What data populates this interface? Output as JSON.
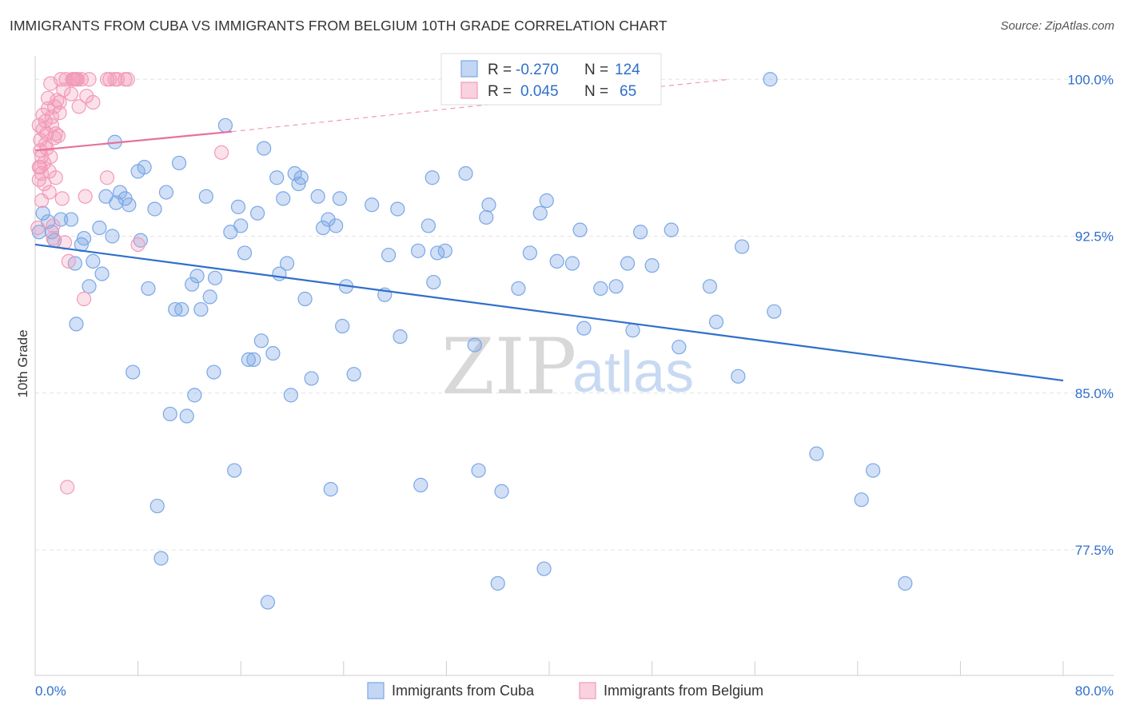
{
  "header": {
    "title": "IMMIGRANTS FROM CUBA VS IMMIGRANTS FROM BELGIUM 10TH GRADE CORRELATION CHART",
    "source": "Source: ZipAtlas.com"
  },
  "watermark": {
    "zip": "ZIP",
    "atlas": "atlas"
  },
  "chart_data": {
    "type": "scatter",
    "title": "IMMIGRANTS FROM CUBA VS IMMIGRANTS FROM BELGIUM 10TH GRADE CORRELATION CHART",
    "xlabel": "",
    "ylabel": "10th Grade",
    "xlim": [
      0,
      80
    ],
    "ylim": [
      71.5,
      101.5
    ],
    "x_tick_labels": [
      "0.0%",
      "80.0%"
    ],
    "y_ticks": [
      77.5,
      85.0,
      92.5,
      100.0
    ],
    "y_tick_labels": [
      "77.5%",
      "85.0%",
      "92.5%",
      "100.0%"
    ],
    "legend": [
      {
        "r_label": "R =",
        "r_value": "-0.270",
        "n_label": "N =",
        "n_value": "124"
      },
      {
        "r_label": "R =",
        "r_value": "0.045",
        "n_label": "N =",
        "n_value": "65"
      }
    ],
    "series": [
      {
        "name": "Immigrants from Cuba",
        "color": "#7aa7e6",
        "fill": "rgba(122,167,230,0.35)",
        "trend": {
          "x": [
            0,
            80
          ],
          "y": [
            92.1,
            85.6
          ],
          "color": "#2f6fcb"
        },
        "points": [
          [
            0.3,
            92.7
          ],
          [
            0.6,
            93.6
          ],
          [
            1.0,
            93.2
          ],
          [
            1.3,
            92.7
          ],
          [
            1.5,
            92.3
          ],
          [
            2.0,
            93.3
          ],
          [
            2.8,
            93.3
          ],
          [
            3.1,
            91.2
          ],
          [
            3.2,
            88.3
          ],
          [
            3.6,
            92.1
          ],
          [
            3.8,
            92.4
          ],
          [
            4.2,
            90.1
          ],
          [
            4.5,
            91.3
          ],
          [
            5.0,
            92.9
          ],
          [
            5.2,
            90.7
          ],
          [
            5.5,
            94.4
          ],
          [
            6.0,
            92.5
          ],
          [
            6.2,
            97.0
          ],
          [
            6.3,
            94.1
          ],
          [
            6.6,
            94.6
          ],
          [
            7.0,
            94.3
          ],
          [
            7.3,
            94.0
          ],
          [
            7.6,
            86.0
          ],
          [
            8.0,
            95.6
          ],
          [
            8.2,
            92.3
          ],
          [
            8.5,
            95.8
          ],
          [
            8.8,
            90.0
          ],
          [
            9.3,
            93.8
          ],
          [
            9.5,
            79.6
          ],
          [
            9.8,
            77.1
          ],
          [
            10.2,
            94.6
          ],
          [
            10.5,
            84.0
          ],
          [
            10.9,
            89.0
          ],
          [
            11.2,
            96.0
          ],
          [
            11.4,
            89.0
          ],
          [
            11.8,
            83.9
          ],
          [
            12.2,
            90.2
          ],
          [
            12.4,
            84.9
          ],
          [
            12.6,
            90.6
          ],
          [
            12.9,
            89.0
          ],
          [
            13.3,
            94.4
          ],
          [
            13.6,
            89.6
          ],
          [
            13.9,
            86.0
          ],
          [
            14.0,
            90.5
          ],
          [
            14.8,
            97.8
          ],
          [
            15.2,
            92.7
          ],
          [
            15.5,
            81.3
          ],
          [
            15.8,
            93.9
          ],
          [
            16.0,
            93.0
          ],
          [
            16.3,
            91.7
          ],
          [
            16.6,
            86.6
          ],
          [
            17.0,
            86.6
          ],
          [
            17.3,
            93.6
          ],
          [
            17.6,
            87.5
          ],
          [
            17.8,
            96.7
          ],
          [
            18.1,
            75.0
          ],
          [
            18.5,
            86.9
          ],
          [
            18.8,
            95.3
          ],
          [
            19.0,
            90.7
          ],
          [
            19.3,
            94.3
          ],
          [
            19.6,
            91.2
          ],
          [
            19.9,
            84.9
          ],
          [
            20.2,
            95.5
          ],
          [
            20.5,
            95.0
          ],
          [
            20.7,
            95.3
          ],
          [
            21.0,
            89.5
          ],
          [
            21.5,
            85.7
          ],
          [
            22.0,
            94.4
          ],
          [
            22.4,
            92.9
          ],
          [
            22.8,
            93.3
          ],
          [
            23.0,
            80.4
          ],
          [
            23.4,
            93.0
          ],
          [
            23.7,
            94.3
          ],
          [
            23.9,
            88.2
          ],
          [
            24.2,
            90.1
          ],
          [
            24.8,
            85.9
          ],
          [
            26.2,
            94.0
          ],
          [
            27.2,
            89.7
          ],
          [
            27.5,
            91.6
          ],
          [
            28.2,
            93.8
          ],
          [
            28.4,
            87.7
          ],
          [
            29.8,
            91.8
          ],
          [
            30.0,
            80.6
          ],
          [
            30.6,
            93.0
          ],
          [
            30.9,
            95.3
          ],
          [
            31.0,
            90.3
          ],
          [
            31.3,
            91.7
          ],
          [
            31.9,
            91.8
          ],
          [
            33.5,
            95.5
          ],
          [
            34.2,
            87.3
          ],
          [
            34.5,
            81.3
          ],
          [
            35.1,
            93.4
          ],
          [
            35.3,
            94.0
          ],
          [
            36.0,
            75.9
          ],
          [
            36.3,
            80.3
          ],
          [
            37.6,
            90.0
          ],
          [
            38.5,
            91.7
          ],
          [
            39.3,
            93.6
          ],
          [
            39.6,
            76.6
          ],
          [
            39.8,
            94.2
          ],
          [
            40.6,
            91.3
          ],
          [
            41.8,
            91.2
          ],
          [
            42.4,
            92.8
          ],
          [
            42.7,
            88.1
          ],
          [
            44.0,
            90.0
          ],
          [
            45.2,
            90.1
          ],
          [
            46.1,
            91.2
          ],
          [
            46.5,
            88.0
          ],
          [
            47.1,
            92.7
          ],
          [
            48.0,
            91.1
          ],
          [
            49.5,
            92.8
          ],
          [
            50.1,
            87.2
          ],
          [
            52.5,
            90.1
          ],
          [
            53.0,
            88.4
          ],
          [
            54.7,
            85.8
          ],
          [
            55.0,
            92.0
          ],
          [
            57.2,
            100.0
          ],
          [
            57.5,
            88.9
          ],
          [
            60.8,
            82.1
          ],
          [
            64.3,
            79.9
          ],
          [
            65.2,
            81.3
          ],
          [
            67.7,
            75.9
          ]
        ]
      },
      {
        "name": "Immigrants from Belgium",
        "color": "#f29ab8",
        "fill": "rgba(242,154,184,0.30)",
        "trend": {
          "x": [
            0,
            15.3
          ],
          "y": [
            96.6,
            97.5
          ],
          "color": "#e8719b"
        },
        "trend_ext": {
          "x": [
            15.3,
            54
          ],
          "y": [
            97.5,
            100.0
          ]
        },
        "points": [
          [
            0.2,
            92.9
          ],
          [
            0.3,
            95.2
          ],
          [
            0.3,
            95.8
          ],
          [
            0.4,
            96.6
          ],
          [
            0.4,
            97.1
          ],
          [
            0.5,
            94.2
          ],
          [
            0.5,
            95.5
          ],
          [
            0.6,
            97.6
          ],
          [
            0.6,
            98.3
          ],
          [
            0.7,
            96.0
          ],
          [
            0.7,
            95.0
          ],
          [
            0.8,
            98.0
          ],
          [
            0.9,
            97.4
          ],
          [
            0.9,
            96.7
          ],
          [
            1.0,
            98.6
          ],
          [
            1.0,
            99.1
          ],
          [
            1.1,
            94.6
          ],
          [
            1.1,
            95.6
          ],
          [
            1.2,
            96.3
          ],
          [
            1.2,
            99.8
          ],
          [
            1.3,
            97.8
          ],
          [
            1.3,
            98.2
          ],
          [
            1.4,
            92.4
          ],
          [
            1.4,
            93.0
          ],
          [
            1.5,
            98.7
          ],
          [
            1.6,
            95.3
          ],
          [
            1.6,
            97.4
          ],
          [
            1.7,
            99.0
          ],
          [
            1.8,
            97.3
          ],
          [
            1.9,
            98.9
          ],
          [
            2.0,
            100.0
          ],
          [
            2.1,
            94.3
          ],
          [
            2.2,
            99.5
          ],
          [
            2.3,
            92.2
          ],
          [
            2.4,
            100.0
          ],
          [
            2.5,
            80.5
          ],
          [
            2.6,
            91.3
          ],
          [
            2.8,
            99.3
          ],
          [
            2.9,
            100.0
          ],
          [
            3.0,
            100.0
          ],
          [
            3.1,
            100.0
          ],
          [
            3.2,
            100.0
          ],
          [
            3.3,
            100.0
          ],
          [
            3.4,
            98.7
          ],
          [
            3.6,
            100.0
          ],
          [
            3.8,
            89.5
          ],
          [
            3.9,
            94.4
          ],
          [
            4.0,
            99.2
          ],
          [
            4.2,
            100.0
          ],
          [
            4.5,
            98.9
          ],
          [
            5.6,
            95.3
          ],
          [
            5.6,
            100.0
          ],
          [
            5.8,
            100.0
          ],
          [
            6.2,
            100.0
          ],
          [
            6.4,
            100.0
          ],
          [
            7.0,
            100.0
          ],
          [
            7.2,
            100.0
          ],
          [
            8.0,
            92.1
          ],
          [
            14.5,
            96.5
          ],
          [
            0.5,
            96.3
          ],
          [
            0.8,
            96.9
          ],
          [
            1.5,
            97.2
          ],
          [
            0.4,
            95.8
          ],
          [
            0.3,
            97.8
          ],
          [
            1.9,
            98.4
          ]
        ]
      }
    ]
  },
  "bottom_legend": [
    {
      "label": "Immigrants from Cuba"
    },
    {
      "label": "Immigrants from Belgium"
    }
  ]
}
